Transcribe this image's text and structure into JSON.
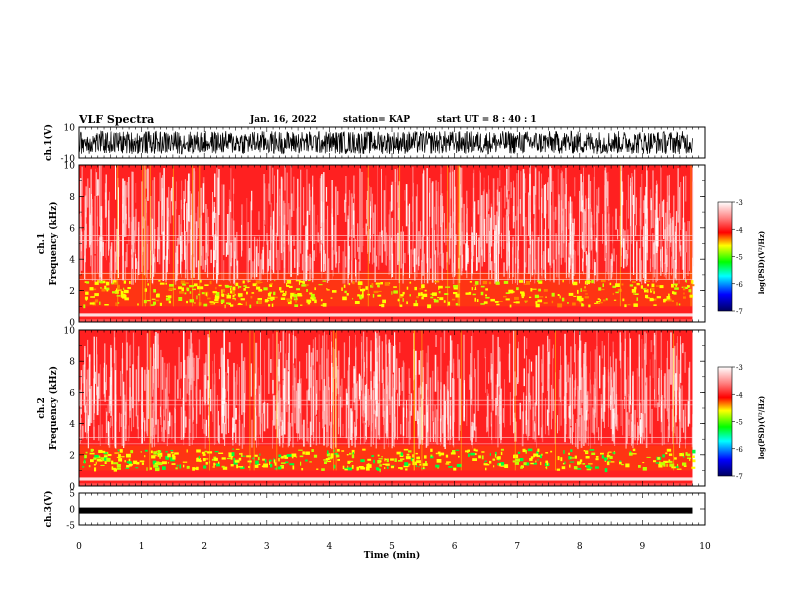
{
  "header": {
    "title": "VLF Spectra",
    "date": "Jan. 16, 2022",
    "station": "station= KAP",
    "start": "start  UT  =   8 : 40 : 1"
  },
  "chart_data": [
    {
      "type": "line",
      "panel": "ch1-waveform",
      "ylabel": "ch.1(V)",
      "ylim": [
        -10,
        10
      ],
      "yticks": [
        "10",
        "-10"
      ],
      "xlim": [
        0,
        10
      ],
      "signal_range_min": [
        0,
        9.8
      ],
      "color": "#000000"
    },
    {
      "type": "heatmap",
      "panel": "ch1-spectrogram",
      "ylabel": "ch.1\nFrequency  (kHz)",
      "ylim": [
        0,
        10
      ],
      "yticks": [
        "0",
        "2",
        "4",
        "6",
        "8",
        "10"
      ],
      "xlim": [
        0,
        10
      ],
      "data_extent_min": [
        0,
        9.8
      ]
    },
    {
      "type": "heatmap",
      "panel": "ch2-spectrogram",
      "ylabel": "ch.2\nFrequency  (kHz)",
      "ylim": [
        0,
        10
      ],
      "yticks": [
        "0",
        "2",
        "4",
        "6",
        "8",
        "10"
      ],
      "xlim": [
        0,
        10
      ],
      "data_extent_min": [
        0,
        9.8
      ]
    },
    {
      "type": "line",
      "panel": "ch3-waveform",
      "ylabel": "ch.3(V)",
      "ylim": [
        -5,
        5
      ],
      "yticks": [
        "5",
        "0",
        "-5"
      ],
      "xlim": [
        0,
        10
      ],
      "signal_level_V": -0.5,
      "color": "#000000"
    }
  ],
  "xaxis": {
    "label": "Time  (min)",
    "ticks": [
      "0",
      "1",
      "2",
      "3",
      "4",
      "5",
      "6",
      "7",
      "8",
      "9",
      "10"
    ]
  },
  "colorbar": {
    "label": "log(PSD)(V²/Hz)",
    "ticks": [
      "-3",
      "-4",
      "-5",
      "-6",
      "-7"
    ],
    "range": [
      -7,
      -3
    ],
    "colors": [
      "#000060",
      "#0000ff",
      "#00ffff",
      "#00ff00",
      "#ffff00",
      "#ff0000",
      "#ffffff"
    ]
  }
}
